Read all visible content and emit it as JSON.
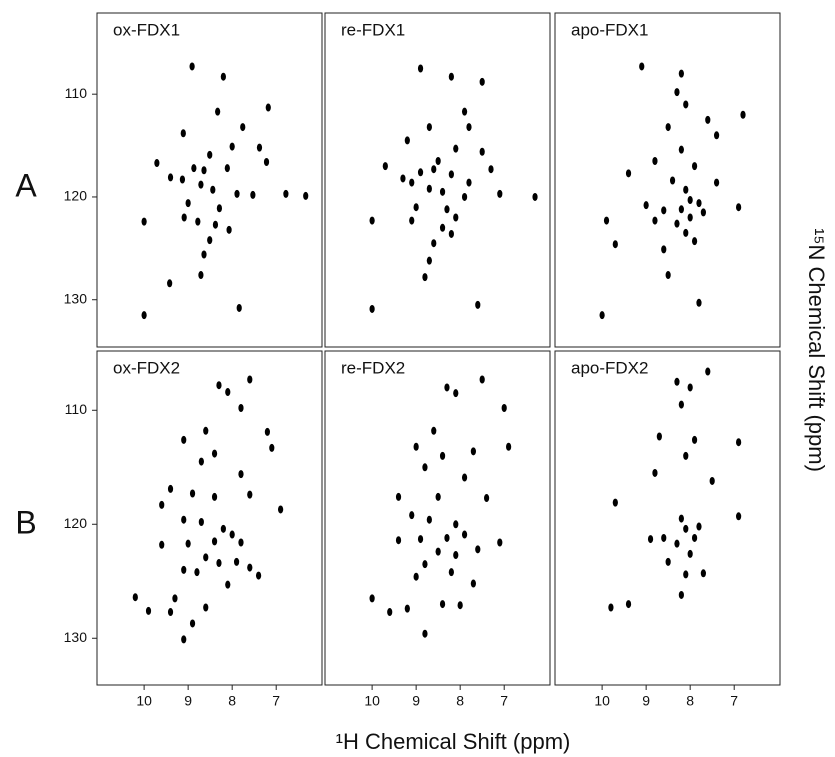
{
  "figure": {
    "row_labels": [
      "A",
      "B"
    ],
    "xlabel": "¹H Chemical Shift (ppm)",
    "ylabel": "¹⁵N Chemical Shift (ppm)"
  },
  "chart_data": [
    {
      "type": "scatter",
      "title": "ox-FDX1",
      "color": "#000000",
      "xlim": [
        11.07,
        5.96
      ],
      "ylim": [
        102.1,
        134.6
      ],
      "yticks": [
        110,
        120,
        130
      ],
      "x": [
        8.91,
        8.2,
        7.18,
        8.33,
        7.76,
        9.11,
        8.0,
        7.38,
        8.51,
        7.22,
        9.71,
        9.4,
        8.87,
        8.64,
        8.11,
        9.13,
        8.71,
        8.44,
        7.89,
        6.78,
        6.33,
        9.0,
        8.29,
        9.09,
        8.38,
        10.0,
        8.51,
        8.64,
        8.71,
        9.42,
        10.0,
        7.84,
        8.07,
        7.53,
        8.78
      ],
      "y": [
        107.3,
        108.3,
        111.3,
        111.7,
        113.2,
        113.8,
        115.1,
        115.2,
        115.9,
        116.6,
        116.7,
        118.1,
        117.2,
        117.4,
        117.2,
        118.3,
        118.8,
        119.3,
        119.7,
        119.7,
        119.9,
        120.6,
        121.1,
        122.0,
        122.7,
        122.4,
        124.2,
        125.6,
        127.6,
        128.4,
        131.5,
        130.8,
        123.2,
        119.8,
        122.4
      ]
    },
    {
      "type": "scatter",
      "title": "re-FDX1",
      "color": "#000000",
      "xlim": [
        11.07,
        5.96
      ],
      "ylim": [
        102.1,
        134.6
      ],
      "x": [
        8.9,
        8.2,
        7.5,
        7.9,
        8.7,
        7.8,
        9.2,
        8.1,
        7.5,
        8.5,
        9.7,
        9.3,
        8.9,
        8.6,
        8.2,
        7.3,
        9.1,
        8.7,
        8.4,
        7.9,
        7.1,
        6.3,
        9.0,
        8.3,
        8.1,
        9.1,
        8.4,
        10.0,
        8.6,
        8.7,
        8.8,
        10.0,
        7.6,
        8.2,
        7.8
      ],
      "y": [
        107.5,
        108.3,
        108.8,
        111.7,
        113.2,
        113.2,
        114.5,
        115.3,
        115.6,
        116.5,
        117.0,
        118.2,
        117.6,
        117.3,
        117.8,
        117.3,
        118.6,
        119.2,
        119.5,
        120.0,
        119.7,
        120.0,
        121.0,
        121.2,
        122.0,
        122.3,
        123.0,
        122.3,
        124.5,
        126.2,
        127.8,
        130.9,
        130.5,
        123.6,
        118.6
      ]
    },
    {
      "type": "scatter",
      "title": "apo-FDX1",
      "color": "#000000",
      "xlim": [
        11.07,
        5.96
      ],
      "ylim": [
        102.1,
        134.6
      ],
      "x": [
        9.1,
        8.2,
        8.3,
        8.1,
        7.6,
        6.8,
        8.5,
        7.4,
        8.2,
        8.8,
        7.9,
        9.4,
        8.4,
        8.1,
        8.0,
        7.8,
        8.2,
        8.0,
        7.7,
        8.3,
        8.1,
        7.9,
        8.6,
        9.0,
        8.8,
        6.9,
        9.9,
        9.7,
        8.5,
        7.4,
        10.0,
        7.8,
        8.6
      ],
      "y": [
        107.3,
        108.0,
        109.8,
        111.0,
        112.5,
        112.0,
        113.2,
        114.0,
        115.4,
        116.5,
        117.0,
        117.7,
        118.4,
        119.3,
        120.3,
        120.6,
        121.2,
        122.0,
        121.5,
        122.6,
        123.5,
        124.3,
        121.3,
        120.8,
        122.3,
        121.0,
        122.3,
        124.6,
        127.6,
        118.6,
        131.5,
        130.3,
        125.1
      ]
    },
    {
      "type": "scatter",
      "title": "ox-FDX2",
      "color": "#000000",
      "xlim": [
        11.07,
        5.96
      ],
      "ylim": [
        104.8,
        134.1
      ],
      "xticks": [
        10,
        9,
        8,
        7
      ],
      "yticks": [
        110,
        120,
        130
      ],
      "x": [
        8.3,
        8.1,
        7.6,
        7.8,
        8.6,
        7.2,
        9.1,
        8.4,
        8.7,
        7.8,
        7.1,
        9.4,
        8.9,
        8.4,
        7.6,
        6.9,
        9.6,
        9.1,
        8.7,
        8.2,
        8.0,
        7.8,
        8.4,
        9.0,
        9.6,
        8.6,
        8.3,
        7.9,
        9.1,
        8.8,
        7.6,
        8.1,
        9.3,
        10.2,
        9.9,
        9.4,
        8.6,
        8.9,
        9.1,
        7.4
      ],
      "y": [
        107.8,
        108.4,
        107.3,
        109.8,
        111.8,
        111.9,
        112.6,
        113.8,
        114.5,
        115.6,
        113.3,
        116.9,
        117.3,
        117.6,
        117.4,
        118.7,
        118.3,
        119.6,
        119.8,
        120.4,
        120.9,
        121.6,
        121.5,
        121.7,
        121.8,
        122.9,
        123.4,
        123.3,
        124.0,
        124.2,
        123.8,
        125.3,
        126.5,
        126.4,
        127.6,
        127.7,
        127.3,
        128.7,
        130.1,
        124.5
      ]
    },
    {
      "type": "scatter",
      "title": "re-FDX2",
      "color": "#000000",
      "xlim": [
        11.07,
        5.96
      ],
      "ylim": [
        104.8,
        134.1
      ],
      "xticks": [
        10,
        9,
        8,
        7
      ],
      "x": [
        8.3,
        8.1,
        7.5,
        7.0,
        8.6,
        9.0,
        8.4,
        7.7,
        6.9,
        8.8,
        7.9,
        9.4,
        8.5,
        7.4,
        9.1,
        8.7,
        8.1,
        7.9,
        8.3,
        8.9,
        9.4,
        8.5,
        8.1,
        7.6,
        8.8,
        9.0,
        8.2,
        7.7,
        8.4,
        8.0,
        10.0,
        9.6,
        9.2,
        8.8,
        7.1
      ],
      "y": [
        108.0,
        108.5,
        107.3,
        109.8,
        111.8,
        113.2,
        114.0,
        113.6,
        113.2,
        115.0,
        115.9,
        117.6,
        117.6,
        117.7,
        119.2,
        119.6,
        120.0,
        120.9,
        121.2,
        121.3,
        121.4,
        122.4,
        122.7,
        122.2,
        123.5,
        124.6,
        124.2,
        125.2,
        127.0,
        127.1,
        126.5,
        127.7,
        127.4,
        129.6,
        121.6
      ]
    },
    {
      "type": "scatter",
      "title": "apo-FDX2",
      "color": "#000000",
      "xlim": [
        11.07,
        5.96
      ],
      "ylim": [
        104.8,
        134.1
      ],
      "xticks": [
        10,
        9,
        8,
        7
      ],
      "x": [
        8.3,
        7.6,
        8.0,
        8.2,
        8.7,
        7.9,
        8.1,
        8.8,
        7.5,
        9.7,
        6.9,
        8.2,
        8.1,
        7.9,
        8.3,
        8.0,
        8.6,
        8.9,
        7.8,
        6.9,
        8.5,
        8.1,
        7.7,
        8.2,
        9.4,
        9.8
      ],
      "y": [
        107.5,
        106.6,
        108.0,
        109.5,
        112.3,
        112.6,
        114.0,
        115.5,
        116.2,
        118.1,
        112.8,
        119.5,
        120.4,
        121.2,
        121.7,
        122.6,
        121.2,
        121.3,
        120.2,
        119.3,
        123.3,
        124.4,
        124.3,
        126.2,
        127.0,
        127.3
      ]
    }
  ]
}
